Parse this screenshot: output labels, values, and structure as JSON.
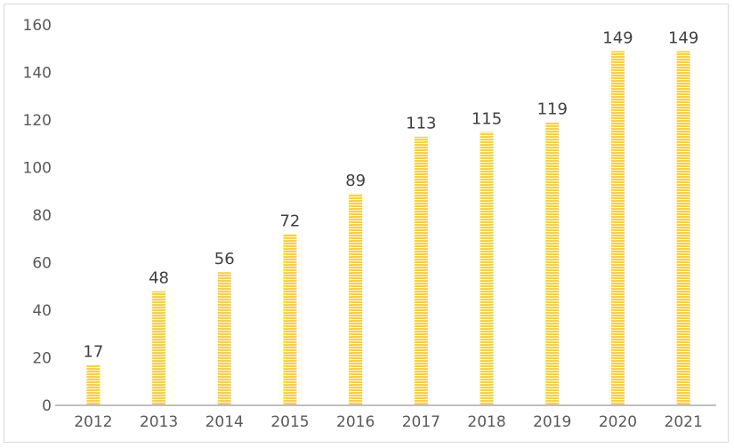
{
  "chart_data": {
    "type": "bar",
    "categories": [
      "2012",
      "2013",
      "2014",
      "2015",
      "2016",
      "2017",
      "2018",
      "2019",
      "2020",
      "2021"
    ],
    "values": [
      17,
      48,
      56,
      72,
      89,
      113,
      115,
      119,
      149,
      149
    ],
    "yticks": [
      0,
      20,
      40,
      60,
      80,
      100,
      120,
      140,
      160
    ],
    "ylim": [
      0,
      160
    ],
    "title": "",
    "xlabel": "",
    "ylabel": "",
    "grid": false,
    "legend": "none",
    "bar_color": "#f5d04a",
    "bar_stripe_color": "#fff6c8",
    "axis_color": "#bfbfbf"
  }
}
